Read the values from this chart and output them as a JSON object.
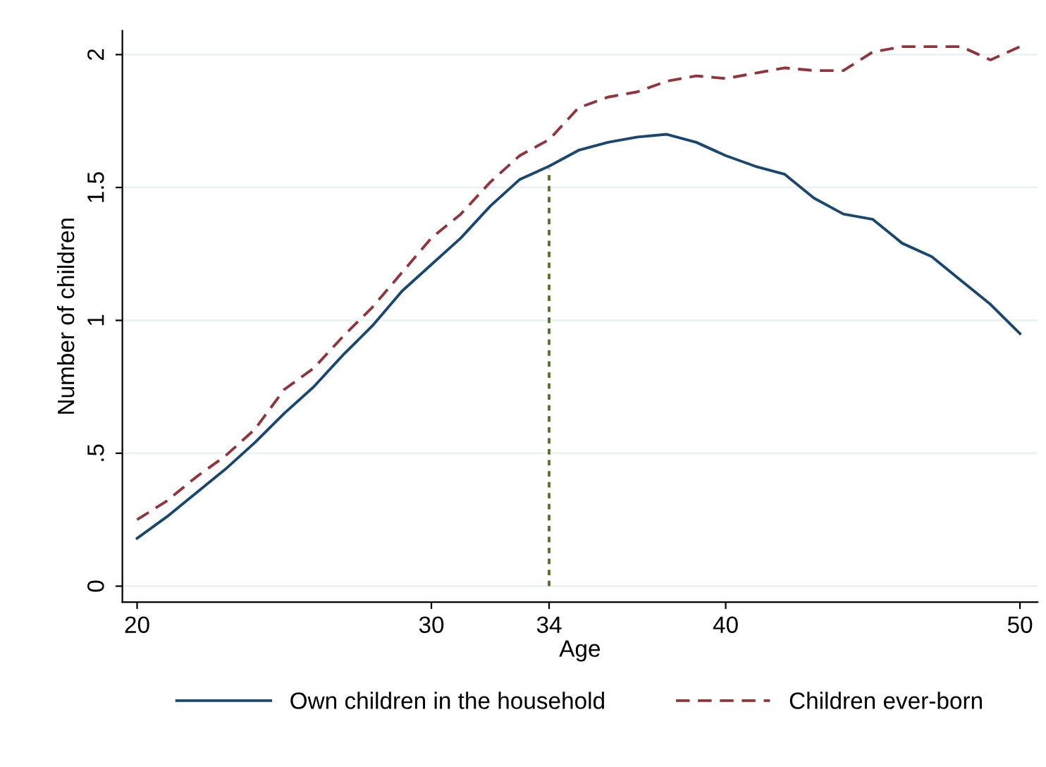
{
  "chart_data": {
    "type": "line",
    "xlabel": "Age",
    "ylabel": "Number of children",
    "x": [
      20,
      21,
      22,
      23,
      24,
      25,
      26,
      27,
      28,
      29,
      30,
      31,
      32,
      33,
      34,
      35,
      36,
      37,
      38,
      39,
      40,
      41,
      42,
      43,
      44,
      45,
      46,
      47,
      48,
      49,
      50
    ],
    "series": [
      {
        "name": "Own children in the household",
        "color": "#1a476f",
        "line_style": "solid",
        "values": [
          0.18,
          0.26,
          0.35,
          0.44,
          0.54,
          0.65,
          0.75,
          0.87,
          0.98,
          1.11,
          1.21,
          1.31,
          1.43,
          1.53,
          1.58,
          1.64,
          1.67,
          1.69,
          1.7,
          1.67,
          1.62,
          1.58,
          1.55,
          1.46,
          1.4,
          1.38,
          1.29,
          1.24,
          1.15,
          1.06,
          0.95
        ]
      },
      {
        "name": "Children ever-born",
        "color": "#90353b",
        "line_style": "dashed",
        "values": [
          0.25,
          0.32,
          0.41,
          0.49,
          0.59,
          0.74,
          0.82,
          0.94,
          1.05,
          1.18,
          1.31,
          1.4,
          1.52,
          1.62,
          1.68,
          1.8,
          1.84,
          1.86,
          1.9,
          1.92,
          1.91,
          1.93,
          1.95,
          1.94,
          1.94,
          2.01,
          2.03,
          2.03,
          2.03,
          1.98,
          2.03
        ]
      },
      {
        "type": "line",
        "color": "#55752f",
        "line_style": "dotted",
        "x": [
          34,
          34
        ],
        "values": [
          0,
          1.57
        ]
      }
    ],
    "xlim": [
      19.5,
      50.6
    ],
    "xticks": [
      20,
      30,
      34,
      40,
      50
    ],
    "ylim": [
      -0.06,
      2.09
    ],
    "yticks": [
      0,
      {
        "value": 0.5,
        "label": ".5"
      },
      1,
      1.5,
      2
    ],
    "grid": "y",
    "legend": "bottom",
    "marker": "none"
  }
}
